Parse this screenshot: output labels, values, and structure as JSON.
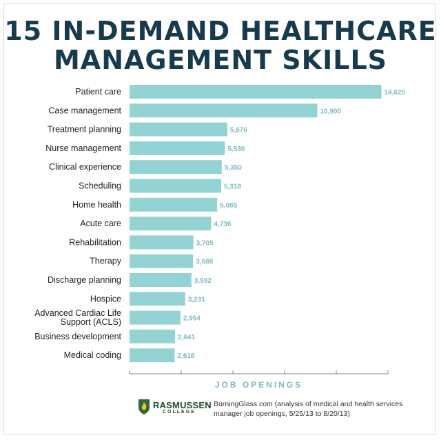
{
  "title_line1": "15 IN-DEMAND HEALTHCARE",
  "title_line2": "MANAGEMENT SKILLS",
  "chart_data": {
    "type": "bar",
    "orientation": "horizontal",
    "categories": [
      "Patient care",
      "Case management",
      "Treatment planning",
      "Nurse management",
      "Clinical experience",
      "Scheduling",
      "Home health",
      "Acute care",
      "Rehabilitation",
      "Therapy",
      "Discharge planning",
      "Hospice",
      "Advanced Cardiac Life Support (ACLS)",
      "Business development",
      "Medical coding"
    ],
    "category_lines": [
      [
        "Patient care"
      ],
      [
        "Case management"
      ],
      [
        "Treatment planning"
      ],
      [
        "Nurse management"
      ],
      [
        "Clinical experience"
      ],
      [
        "Scheduling"
      ],
      [
        "Home health"
      ],
      [
        "Acute care"
      ],
      [
        "Rehabilitation"
      ],
      [
        "Therapy"
      ],
      [
        "Discharge planning"
      ],
      [
        "Hospice"
      ],
      [
        "Advanced Cardiac Life",
        "Support (ACLS)"
      ],
      [
        "Business development"
      ],
      [
        "Medical coding"
      ]
    ],
    "values": [
      14620,
      10900,
      5676,
      5530,
      5350,
      5318,
      5085,
      4736,
      3705,
      3688,
      3592,
      3231,
      2954,
      2641,
      2618
    ],
    "value_labels": [
      "14,620",
      "10,900",
      "5,676",
      "5,530",
      "5,350",
      "5,318",
      "5,085",
      "4,736",
      "3,705",
      "3,688",
      "3,592",
      "3,231",
      "2,954",
      "2,641",
      "2,618"
    ],
    "xlabel": "JOB OPENINGS",
    "xlim": [
      0,
      15000
    ],
    "bar_color": "#94d3d3",
    "label_color": "#7fbcc2",
    "axis_color": "#888888"
  },
  "footer": {
    "brand_name": "RASMUSSEN",
    "brand_sub": "COLLEGE",
    "source": "BurningGlass.com (analysis of medical and health services manager job openings, 5/25/13 to 8/20/13)",
    "brand_color": "#1d4a2f",
    "shield_color": "#2f6b3a",
    "flame_color": "#f2c12e"
  }
}
